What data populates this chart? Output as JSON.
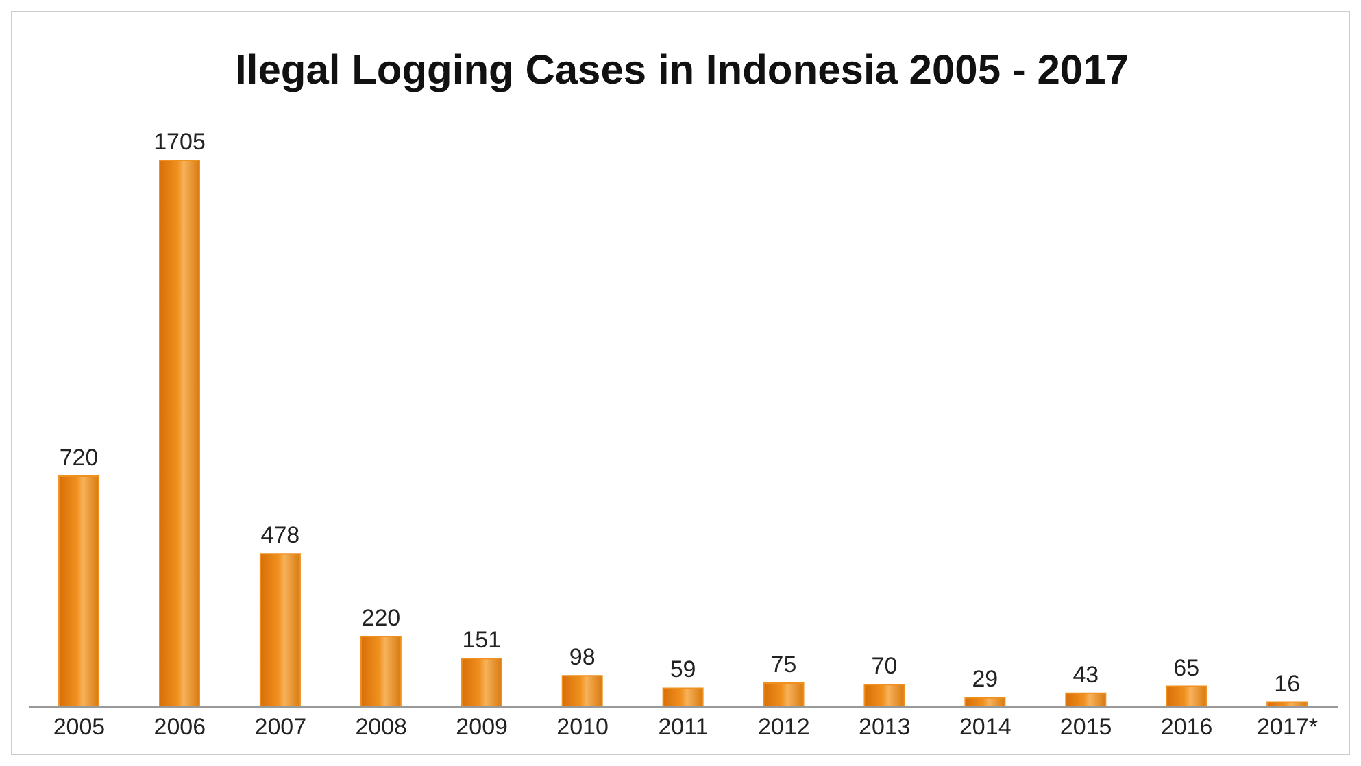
{
  "chart_data": {
    "type": "bar",
    "title": "Ilegal Logging Cases in Indonesia 2005 - 2017",
    "categories": [
      "2005",
      "2006",
      "2007",
      "2008",
      "2009",
      "2010",
      "2011",
      "2012",
      "2013",
      "2014",
      "2015",
      "2016",
      "2017*"
    ],
    "values": [
      720,
      1705,
      478,
      220,
      151,
      98,
      59,
      75,
      70,
      29,
      43,
      65,
      16
    ],
    "color": "#f0901e",
    "data_labels": true,
    "grid": false,
    "legend": false
  }
}
